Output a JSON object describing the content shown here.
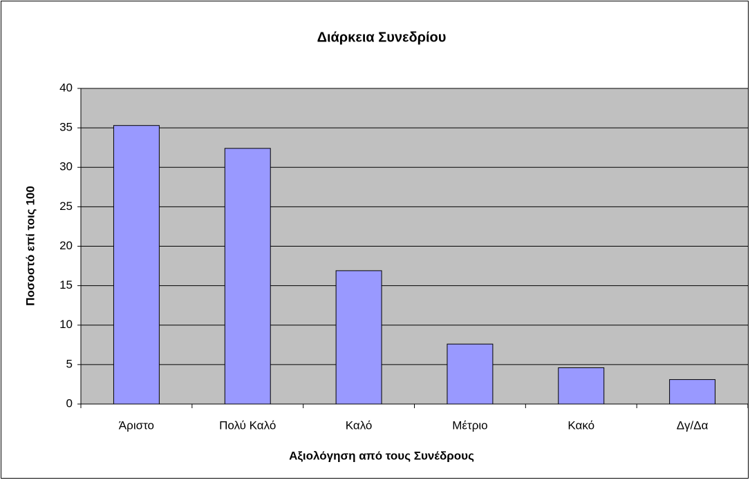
{
  "chart_data": {
    "type": "bar",
    "title": "Διάρκεια Συνεδρίου",
    "xlabel": "Αξιολόγηση από τους Συνέδρους",
    "ylabel": "Ποσοστό επί τοις 100",
    "categories": [
      "Άριστο",
      "Πολύ Καλό",
      "Καλό",
      "Μέτριο",
      "Κακό",
      "Δγ/Δα"
    ],
    "values": [
      35.3,
      32.4,
      16.9,
      7.6,
      4.6,
      3.1
    ],
    "color": "#9999ff",
    "ylim": [
      0,
      40
    ],
    "yticks": [
      0,
      5,
      10,
      15,
      20,
      25,
      30,
      35,
      40
    ],
    "grid": true
  }
}
